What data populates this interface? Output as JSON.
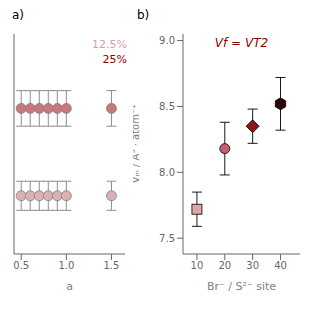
{
  "chart_data": [
    {
      "type": "scatter",
      "title": "a)",
      "xlabel": "a",
      "xlim": [
        0.42,
        1.65
      ],
      "xticks": [
        0.5,
        {
          "value": 1,
          "label": "1.0"
        },
        1.5
      ],
      "ylim": [
        7.87,
        8.55
      ],
      "yticks": [],
      "tick_labels": "x",
      "annotations": [
        {
          "text": "12.5%",
          "color": "#d9a0a0"
        },
        {
          "text": "25%",
          "color": "#8B0000"
        }
      ],
      "series": [
        {
          "marker": "circle",
          "color": "#c87878",
          "x": [
            0.5,
            0.6,
            0.7,
            0.8,
            0.9,
            1.0,
            1.5
          ],
          "values": [
            8.32,
            8.32,
            8.32,
            8.32,
            8.32,
            8.32,
            8.32
          ],
          "yerr": [
            0.055,
            0.055,
            0.055,
            0.055,
            0.055,
            0.055,
            0.055
          ]
        },
        {
          "marker": "circle",
          "color": "#dbb0b0",
          "x": [
            0.5,
            0.6,
            0.7,
            0.8,
            0.9,
            1.0,
            1.5
          ],
          "values": [
            8.05,
            8.05,
            8.05,
            8.05,
            8.05,
            8.05,
            8.05
          ],
          "yerr": [
            0.045,
            0.045,
            0.045,
            0.045,
            0.045,
            0.045,
            0.045
          ]
        }
      ]
    },
    {
      "type": "scatter",
      "title": "b)",
      "xlabel": "Br⁻ / S²⁻ site",
      "ylabel": "Vₘ / Å³ · atom⁻¹",
      "xlim": [
        5,
        47
      ],
      "xticks": [
        10,
        20,
        30,
        40
      ],
      "ylim": [
        7.38,
        9.05
      ],
      "yticks": [
        7.5,
        {
          "value": 8,
          "label": "8.0"
        },
        8.5,
        {
          "value": 9,
          "label": "9.0"
        }
      ],
      "annotations": [
        {
          "text": "Vf = VT2",
          "color": "#8B0000"
        }
      ],
      "series": [
        {
          "marker": "square",
          "color": "#dba8a8",
          "x": [
            10
          ],
          "values": [
            7.72
          ],
          "yerr": [
            0.13
          ]
        },
        {
          "marker": "circle",
          "color": "#c26070",
          "x": [
            20
          ],
          "values": [
            8.18
          ],
          "yerr": [
            0.2
          ]
        },
        {
          "marker": "diamond",
          "color": "#8B1515",
          "x": [
            30
          ],
          "values": [
            8.35
          ],
          "yerr": [
            0.13
          ]
        },
        {
          "marker": "hexagon",
          "color": "#2a0505",
          "x": [
            40
          ],
          "values": [
            8.52
          ],
          "yerr": [
            0.2
          ]
        }
      ]
    }
  ]
}
